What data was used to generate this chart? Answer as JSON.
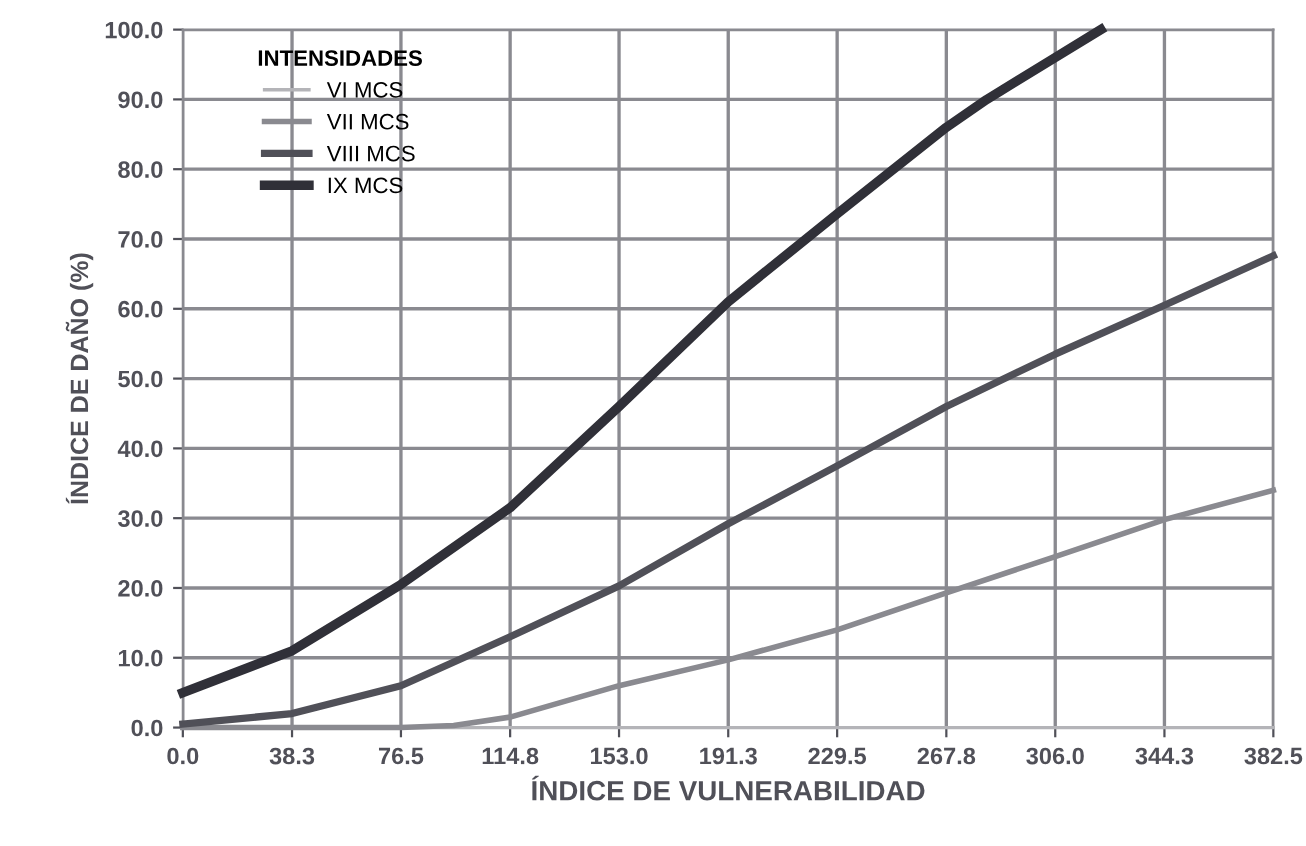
{
  "chart_data": {
    "type": "line",
    "xlabel": "ÍNDICE DE VULNERABILIDAD",
    "ylabel": "ÍNDICE DE DAÑO (%)",
    "legend_title": "INTENSIDADES",
    "series": [
      {
        "name": "VI MCS",
        "color": "#b4b4b8",
        "x": [
          0,
          382.5
        ],
        "values": [
          0,
          0
        ]
      },
      {
        "name": "VII MCS",
        "color": "#8a8a90",
        "x": [
          0,
          38.3,
          76.5,
          95,
          114.8,
          153.0,
          191.3,
          229.5,
          267.8,
          306.0,
          344.3,
          382.5
        ],
        "values": [
          0,
          0,
          0,
          0.3,
          1.5,
          6,
          9.7,
          14,
          19.3,
          24.5,
          29.8,
          34
        ]
      },
      {
        "name": "VIII MCS",
        "color": "#505058",
        "x": [
          0,
          38.3,
          76.5,
          114.8,
          153.0,
          191.3,
          229.5,
          267.8,
          306.0,
          344.3,
          382.5
        ],
        "values": [
          0.5,
          2,
          6,
          13,
          20.3,
          29.2,
          37.5,
          46,
          53.5,
          60.5,
          67.6
        ]
      },
      {
        "name": "IX MCS",
        "color": "#303038",
        "x": [
          0,
          38.3,
          76.5,
          114.8,
          153.0,
          191.3,
          229.5,
          267.8,
          282,
          306.0,
          322
        ],
        "values": [
          5,
          11,
          20.5,
          31.5,
          46,
          61,
          73.6,
          86,
          90,
          96,
          100
        ]
      }
    ],
    "xlim": [
      0,
      382.5
    ],
    "ylim": [
      0,
      100
    ],
    "xticks": [
      {
        "value": 0,
        "label": "0.0"
      },
      38.3,
      76.5,
      114.8,
      {
        "value": 153,
        "label": "153.0"
      },
      191.3,
      229.5,
      267.8,
      {
        "value": 306,
        "label": "306.0"
      },
      344.3,
      382.5
    ],
    "yticks": [
      {
        "value": 0,
        "label": "0.0"
      },
      {
        "value": 10,
        "label": "10.0"
      },
      {
        "value": 20,
        "label": "20.0"
      },
      {
        "value": 30,
        "label": "30.0"
      },
      {
        "value": 40,
        "label": "40.0"
      },
      {
        "value": 50,
        "label": "50.0"
      },
      {
        "value": 60,
        "label": "60.0"
      },
      {
        "value": 70,
        "label": "70.0"
      },
      {
        "value": 80,
        "label": "80.0"
      },
      {
        "value": 90,
        "label": "90.0"
      },
      {
        "value": 100,
        "label": "100.0"
      }
    ],
    "grid": true,
    "legend": "top left",
    "line_style": "solid",
    "marker": "none"
  }
}
